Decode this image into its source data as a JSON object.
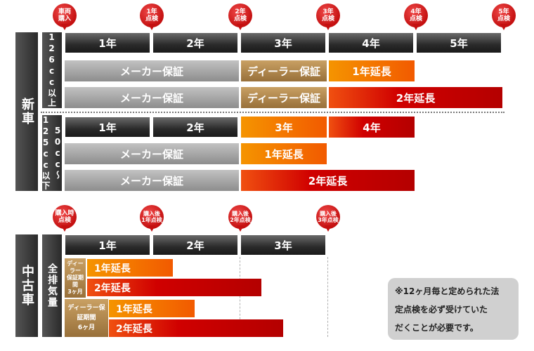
{
  "new": {
    "side_label": "新車",
    "group1_label": "126cc以上",
    "group2_label": "50cc〜125cc以下",
    "pins": [
      "車両\n購入",
      "1年\n点検",
      "2年\n点検",
      "3年\n点検",
      "4年\n点検",
      "5年\n点検"
    ],
    "years": [
      "1年",
      "2年",
      "3年",
      "4年",
      "5年"
    ],
    "g1_row1": {
      "maker": "メーカー保証",
      "dealer": "ディーラー保証",
      "ext": "1年延長"
    },
    "g1_row2": {
      "maker": "メーカー保証",
      "dealer": "ディーラー保証",
      "ext": "2年延長"
    },
    "g2_years": [
      "1年",
      "2年",
      "3年",
      "4年"
    ],
    "g2_row1": {
      "maker": "メーカー保証",
      "ext": "1年延長"
    },
    "g2_row2": {
      "maker": "メーカー保証",
      "ext": "2年延長"
    }
  },
  "used": {
    "side_label": "中古車",
    "group_label": "全排気量",
    "pins": [
      "購入時\n点検",
      "購入後\n1年点検",
      "購入後\n2年点検",
      "購入後\n3年点検"
    ],
    "years": [
      "1年",
      "2年",
      "3年"
    ],
    "tag1": "ディーラー\n保証期間\n3ヶ月",
    "tag2": "ディーラー保証期間\n6ヶ月",
    "tag1_rows": [
      "1年延長",
      "2年延長"
    ],
    "tag2_rows": [
      "1年延長",
      "2年延長"
    ]
  },
  "note": "※12ヶ月毎と定められた法\n定点検を必ず受けていた\nだくことが必要です。"
}
